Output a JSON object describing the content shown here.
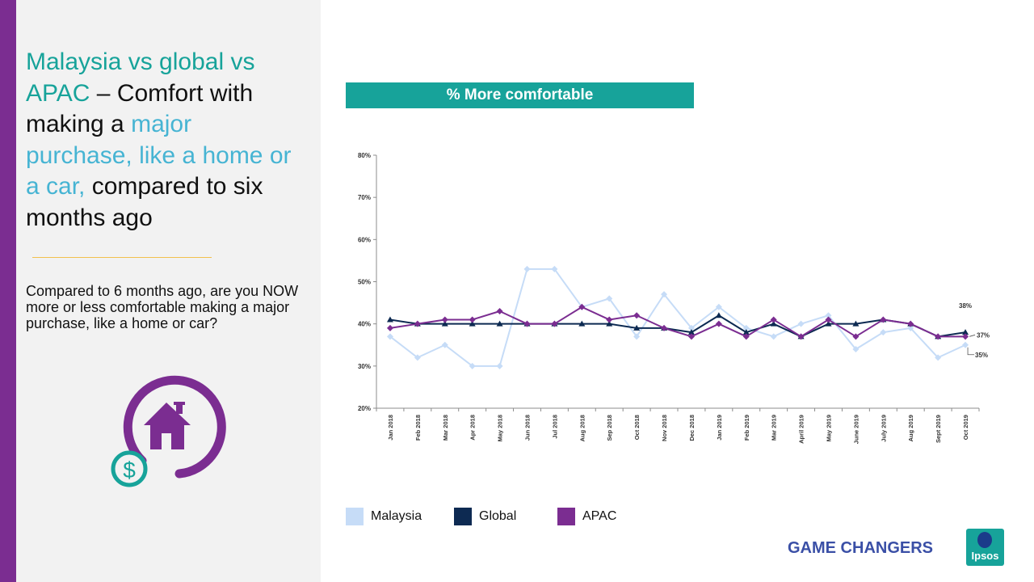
{
  "slide": {
    "title_part1": "Malaysia vs global vs APAC",
    "title_part2": " – Comfort with making a ",
    "title_part3": "major purchase, like a home or a car,",
    "title_part4": " compared to six months ago",
    "question": "Compared to 6 months ago, are you NOW more or less comfortable making a major purchase, like a home or car?",
    "chart_header": "% More comfortable",
    "brand_text": "GAME CHANGERS",
    "logo_text": "Ipsos",
    "icon": "house-dollar-cycle-icon"
  },
  "colors": {
    "accent_purple": "#7b2d91",
    "teal": "#17a39a",
    "cyan": "#46b4d3",
    "malaysia": "#c6dcf7",
    "global": "#0d2a52",
    "apac": "#7b2d91"
  },
  "legend": [
    {
      "label": "Malaysia",
      "color": "#c6dcf7"
    },
    {
      "label": "Global",
      "color": "#0d2a52"
    },
    {
      "label": "APAC",
      "color": "#7b2d91"
    }
  ],
  "chart_data": {
    "type": "line",
    "title": "% More comfortable",
    "x": [
      "Jan 2018",
      "Feb 2018",
      "Mar 2018",
      "Apr 2018",
      "May 2018",
      "Jun 2018",
      "Jul 2018",
      "Aug 2018",
      "Sep 2018",
      "Oct 2018",
      "Nov 2018",
      "Dec 2018",
      "Jan 2019",
      "Feb 2019",
      "Mar 2019",
      "April 2019",
      "May 2019",
      "June 2019",
      "July 2019",
      "Aug 2019",
      "Sept 2019",
      "Oct 2019"
    ],
    "y_ticks": [
      "20%",
      "30%",
      "40%",
      "50%",
      "60%",
      "70%",
      "80%"
    ],
    "ylim": [
      20,
      80
    ],
    "grid": false,
    "legend_position": "bottom",
    "series": [
      {
        "name": "Malaysia",
        "color": "#c6dcf7",
        "marker": "diamond",
        "values": [
          37,
          32,
          35,
          30,
          30,
          53,
          53,
          44,
          46,
          37,
          47,
          39,
          44,
          39,
          37,
          40,
          42,
          34,
          38,
          39,
          32,
          35
        ],
        "end_label": "35%"
      },
      {
        "name": "Global",
        "color": "#0d2a52",
        "marker": "triangle",
        "values": [
          41,
          40,
          40,
          40,
          40,
          40,
          40,
          40,
          40,
          39,
          39,
          38,
          42,
          38,
          40,
          37,
          40,
          40,
          41,
          40,
          37,
          38
        ],
        "end_label": "38%"
      },
      {
        "name": "APAC",
        "color": "#7b2d91",
        "marker": "diamond",
        "values": [
          39,
          40,
          41,
          41,
          43,
          40,
          40,
          44,
          41,
          42,
          39,
          37,
          40,
          37,
          41,
          37,
          41,
          37,
          41,
          40,
          37,
          37
        ],
        "end_label": "37%"
      }
    ]
  }
}
